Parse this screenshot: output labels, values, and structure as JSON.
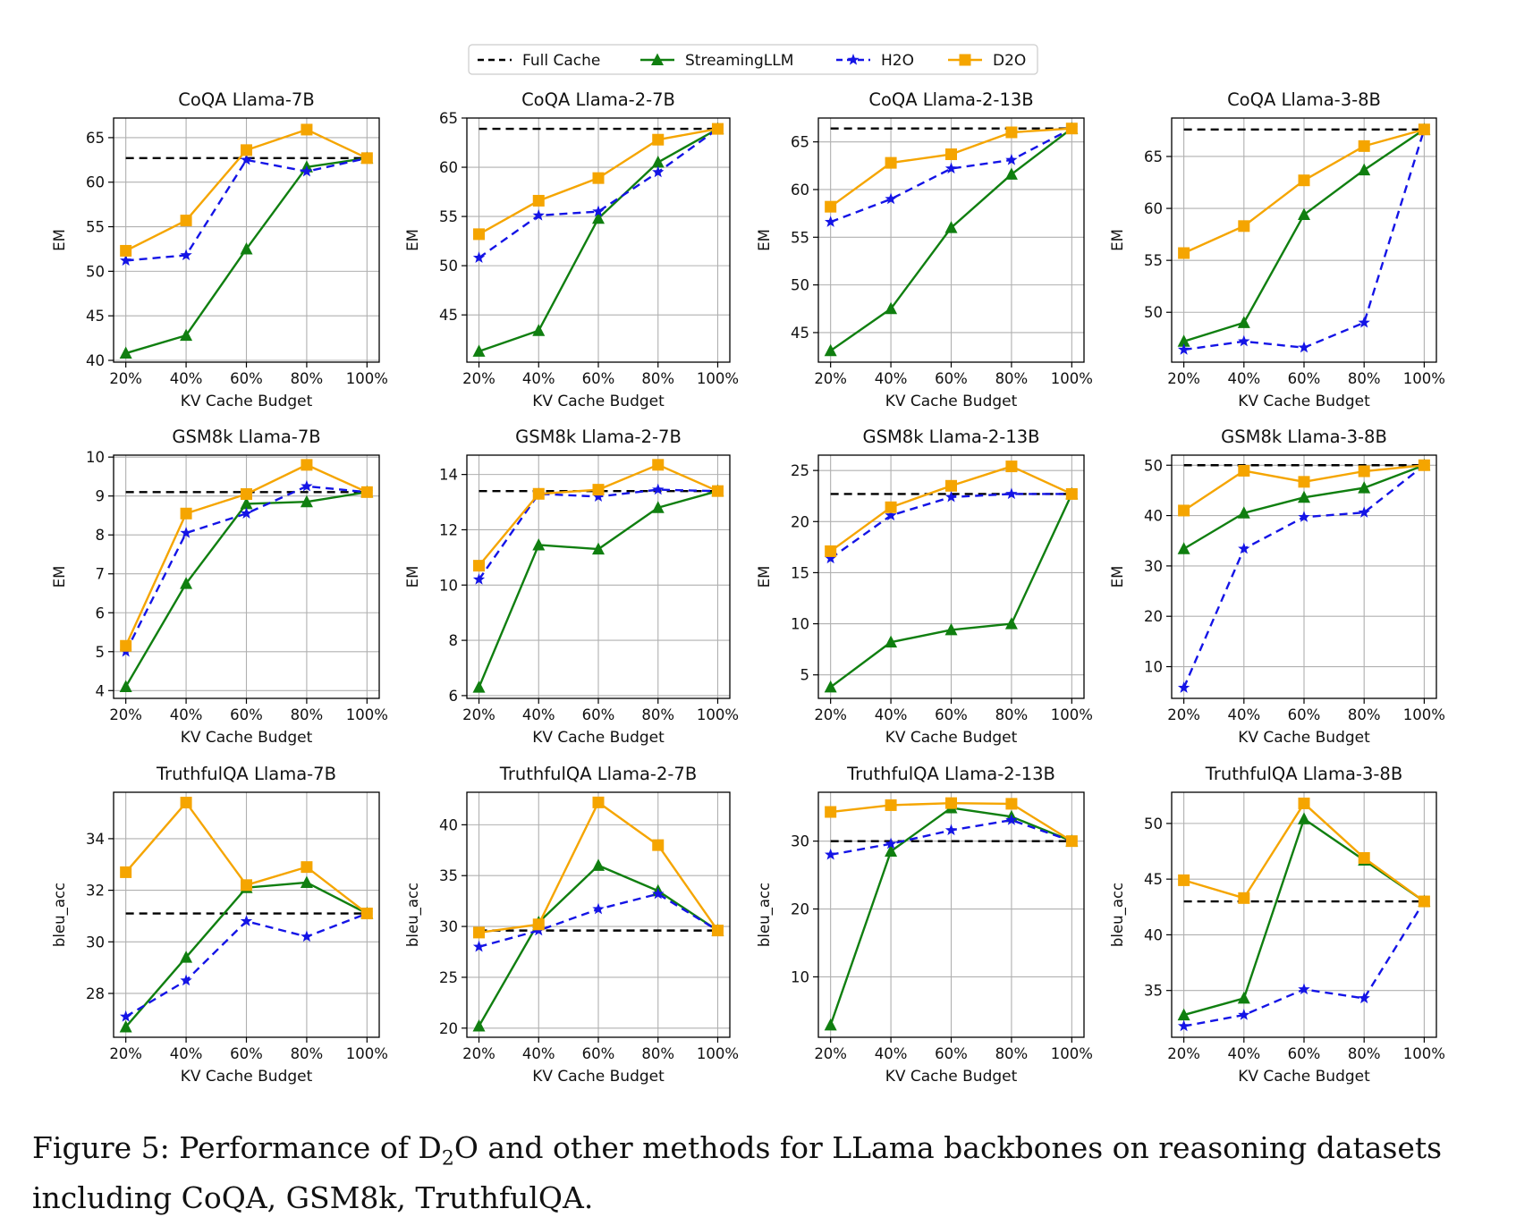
{
  "legend": {
    "items": [
      {
        "label": "Full Cache",
        "color": "#000000",
        "dash": true,
        "marker": "none"
      },
      {
        "label": "StreamingLLM",
        "color": "#107f10",
        "dash": false,
        "marker": "triangle"
      },
      {
        "label": "H2O",
        "color": "#1414e6",
        "dash": true,
        "marker": "star"
      },
      {
        "label": "D2O",
        "color": "#f5a500",
        "dash": false,
        "marker": "square"
      }
    ]
  },
  "caption": {
    "prefix": "Figure 5: Performance of D",
    "sub": "2",
    "suffix": "O and other methods for LLama backbones on reasoning datasets including CoQA, GSM8k, TruthfulQA."
  },
  "colors": {
    "full_cache": "#000000",
    "streaming": "#107f10",
    "h2o": "#1414e6",
    "d2o": "#f5a500",
    "grid": "#b0b0b0"
  },
  "chart_data": [
    {
      "type": "line",
      "title": "CoQA Llama-7B",
      "xlabel": "KV Cache Budget",
      "ylabel": "EM",
      "x": [
        "20%",
        "40%",
        "60%",
        "80%",
        "100%"
      ],
      "ylim": [
        39.8,
        67.2
      ],
      "yticks": [
        40,
        45,
        50,
        55,
        60,
        65
      ],
      "series": [
        {
          "name": "Full Cache",
          "values": [
            62.7,
            62.7,
            62.7,
            62.7,
            62.7
          ]
        },
        {
          "name": "StreamingLLM",
          "values": [
            40.8,
            42.8,
            52.5,
            61.7,
            62.7
          ]
        },
        {
          "name": "H2O",
          "values": [
            51.2,
            51.8,
            62.5,
            61.2,
            62.7
          ]
        },
        {
          "name": "D2O",
          "values": [
            52.3,
            55.7,
            63.6,
            65.9,
            62.7
          ]
        }
      ]
    },
    {
      "type": "line",
      "title": "CoQA Llama-2-7B",
      "xlabel": "KV Cache Budget",
      "ylabel": "EM",
      "x": [
        "20%",
        "40%",
        "60%",
        "80%",
        "100%"
      ],
      "ylim": [
        40.2,
        65.0
      ],
      "yticks": [
        45,
        50,
        55,
        60,
        65
      ],
      "series": [
        {
          "name": "Full Cache",
          "values": [
            63.9,
            63.9,
            63.9,
            63.9,
            63.9
          ]
        },
        {
          "name": "StreamingLLM",
          "values": [
            41.3,
            43.4,
            54.8,
            60.5,
            63.9
          ]
        },
        {
          "name": "H2O",
          "values": [
            50.8,
            55.1,
            55.5,
            59.5,
            63.9
          ]
        },
        {
          "name": "D2O",
          "values": [
            53.2,
            56.6,
            58.9,
            62.8,
            63.9
          ]
        }
      ]
    },
    {
      "type": "line",
      "title": "CoQA Llama-2-13B",
      "xlabel": "KV Cache Budget",
      "ylabel": "EM",
      "x": [
        "20%",
        "40%",
        "60%",
        "80%",
        "100%"
      ],
      "ylim": [
        41.9,
        67.5
      ],
      "yticks": [
        45,
        50,
        55,
        60,
        65
      ],
      "series": [
        {
          "name": "Full Cache",
          "values": [
            66.4,
            66.4,
            66.4,
            66.4,
            66.4
          ]
        },
        {
          "name": "StreamingLLM",
          "values": [
            43.1,
            47.5,
            56.0,
            61.6,
            66.4
          ]
        },
        {
          "name": "H2O",
          "values": [
            56.6,
            59.0,
            62.2,
            63.1,
            66.4
          ]
        },
        {
          "name": "D2O",
          "values": [
            58.2,
            62.8,
            63.7,
            66.0,
            66.4
          ]
        }
      ]
    },
    {
      "type": "line",
      "title": "CoQA Llama-3-8B",
      "xlabel": "KV Cache Budget",
      "ylabel": "EM",
      "x": [
        "20%",
        "40%",
        "60%",
        "80%",
        "100%"
      ],
      "ylim": [
        45.2,
        68.7
      ],
      "yticks": [
        50,
        55,
        60,
        65
      ],
      "series": [
        {
          "name": "Full Cache",
          "values": [
            67.6,
            67.6,
            67.6,
            67.6,
            67.6
          ]
        },
        {
          "name": "StreamingLLM",
          "values": [
            47.2,
            49.0,
            59.4,
            63.7,
            67.6
          ]
        },
        {
          "name": "H2O",
          "values": [
            46.4,
            47.2,
            46.6,
            49.0,
            67.6
          ]
        },
        {
          "name": "D2O",
          "values": [
            55.7,
            58.3,
            62.7,
            66.0,
            67.6
          ]
        }
      ]
    },
    {
      "type": "line",
      "title": "GSM8k Llama-7B",
      "xlabel": "KV Cache Budget",
      "ylabel": "EM",
      "x": [
        "20%",
        "40%",
        "60%",
        "80%",
        "100%"
      ],
      "ylim": [
        3.8,
        10.05
      ],
      "yticks": [
        4,
        5,
        6,
        7,
        8,
        9,
        10
      ],
      "series": [
        {
          "name": "Full Cache",
          "values": [
            9.1,
            9.1,
            9.1,
            9.1,
            9.1
          ]
        },
        {
          "name": "StreamingLLM",
          "values": [
            4.1,
            6.75,
            8.8,
            8.85,
            9.1
          ]
        },
        {
          "name": "H2O",
          "values": [
            5.0,
            8.05,
            8.55,
            9.25,
            9.1
          ]
        },
        {
          "name": "D2O",
          "values": [
            5.15,
            8.55,
            9.05,
            9.8,
            9.1
          ]
        }
      ]
    },
    {
      "type": "line",
      "title": "GSM8k Llama-2-7B",
      "xlabel": "KV Cache Budget",
      "ylabel": "EM",
      "x": [
        "20%",
        "40%",
        "60%",
        "80%",
        "100%"
      ],
      "ylim": [
        5.9,
        14.7
      ],
      "yticks": [
        6,
        8,
        10,
        12,
        14
      ],
      "series": [
        {
          "name": "Full Cache",
          "values": [
            13.4,
            13.4,
            13.4,
            13.4,
            13.4
          ]
        },
        {
          "name": "StreamingLLM",
          "values": [
            6.3,
            11.45,
            11.3,
            12.8,
            13.4
          ]
        },
        {
          "name": "H2O",
          "values": [
            10.2,
            13.3,
            13.2,
            13.45,
            13.4
          ]
        },
        {
          "name": "D2O",
          "values": [
            10.7,
            13.3,
            13.45,
            14.35,
            13.4
          ]
        }
      ]
    },
    {
      "type": "line",
      "title": "GSM8k Llama-2-13B",
      "xlabel": "KV Cache Budget",
      "ylabel": "EM",
      "x": [
        "20%",
        "40%",
        "60%",
        "80%",
        "100%"
      ],
      "ylim": [
        2.7,
        26.5
      ],
      "yticks": [
        5,
        10,
        15,
        20,
        25
      ],
      "series": [
        {
          "name": "Full Cache",
          "values": [
            22.7,
            22.7,
            22.7,
            22.7,
            22.7
          ]
        },
        {
          "name": "StreamingLLM",
          "values": [
            3.8,
            8.2,
            9.4,
            10.0,
            22.7
          ]
        },
        {
          "name": "H2O",
          "values": [
            16.4,
            20.6,
            22.4,
            22.7,
            22.7
          ]
        },
        {
          "name": "D2O",
          "values": [
            17.1,
            21.4,
            23.5,
            25.4,
            22.7
          ]
        }
      ]
    },
    {
      "type": "line",
      "title": "GSM8k Llama-3-8B",
      "xlabel": "KV Cache Budget",
      "ylabel": "EM",
      "x": [
        "20%",
        "40%",
        "60%",
        "80%",
        "100%"
      ],
      "ylim": [
        3.7,
        52.0
      ],
      "yticks": [
        10,
        20,
        30,
        40,
        50
      ],
      "series": [
        {
          "name": "Full Cache",
          "values": [
            50.0,
            50.0,
            50.0,
            50.0,
            50.0
          ]
        },
        {
          "name": "StreamingLLM",
          "values": [
            33.4,
            40.5,
            43.6,
            45.5,
            50.0
          ]
        },
        {
          "name": "H2O",
          "values": [
            5.8,
            33.4,
            39.7,
            40.6,
            50.0
          ]
        },
        {
          "name": "D2O",
          "values": [
            41.0,
            48.9,
            46.7,
            48.8,
            50.0
          ]
        }
      ]
    },
    {
      "type": "line",
      "title": "TruthfulQA Llama-7B",
      "xlabel": "KV Cache Budget",
      "ylabel": "bleu_acc",
      "x": [
        "20%",
        "40%",
        "60%",
        "80%",
        "100%"
      ],
      "ylim": [
        26.3,
        35.8
      ],
      "yticks": [
        28,
        30,
        32,
        34
      ],
      "series": [
        {
          "name": "Full Cache",
          "values": [
            31.1,
            31.1,
            31.1,
            31.1,
            31.1
          ]
        },
        {
          "name": "StreamingLLM",
          "values": [
            26.7,
            29.4,
            32.1,
            32.3,
            31.1
          ]
        },
        {
          "name": "H2O",
          "values": [
            27.1,
            28.5,
            30.8,
            30.2,
            31.1
          ]
        },
        {
          "name": "D2O",
          "values": [
            32.7,
            35.4,
            32.2,
            32.9,
            31.1
          ]
        }
      ]
    },
    {
      "type": "line",
      "title": "TruthfulQA Llama-2-7B",
      "xlabel": "KV Cache Budget",
      "ylabel": "bleu_acc",
      "x": [
        "20%",
        "40%",
        "60%",
        "80%",
        "100%"
      ],
      "ylim": [
        19.1,
        43.2
      ],
      "yticks": [
        20,
        25,
        30,
        35,
        40
      ],
      "series": [
        {
          "name": "Full Cache",
          "values": [
            29.6,
            29.6,
            29.6,
            29.6,
            29.6
          ]
        },
        {
          "name": "StreamingLLM",
          "values": [
            20.2,
            30.4,
            36.0,
            33.5,
            29.6
          ]
        },
        {
          "name": "H2O",
          "values": [
            28.0,
            29.6,
            31.7,
            33.2,
            29.6
          ]
        },
        {
          "name": "D2O",
          "values": [
            29.4,
            30.2,
            42.2,
            38.0,
            29.6
          ]
        }
      ]
    },
    {
      "type": "line",
      "title": "TruthfulQA Llama-2-13B",
      "xlabel": "KV Cache Budget",
      "ylabel": "bleu_acc",
      "x": [
        "20%",
        "40%",
        "60%",
        "80%",
        "100%"
      ],
      "ylim": [
        1.1,
        37.2
      ],
      "yticks": [
        10,
        20,
        30
      ],
      "series": [
        {
          "name": "Full Cache",
          "values": [
            30.0,
            30.0,
            30.0,
            30.0,
            30.0
          ]
        },
        {
          "name": "StreamingLLM",
          "values": [
            2.9,
            28.5,
            34.9,
            33.6,
            30.0
          ]
        },
        {
          "name": "H2O",
          "values": [
            28.0,
            29.6,
            31.6,
            33.1,
            30.0
          ]
        },
        {
          "name": "D2O",
          "values": [
            34.3,
            35.3,
            35.6,
            35.5,
            30.0
          ]
        }
      ]
    },
    {
      "type": "line",
      "title": "TruthfulQA Llama-3-8B",
      "xlabel": "KV Cache Budget",
      "ylabel": "bleu_acc",
      "x": [
        "20%",
        "40%",
        "60%",
        "80%",
        "100%"
      ],
      "ylim": [
        30.8,
        52.8
      ],
      "yticks": [
        35,
        40,
        45,
        50
      ],
      "series": [
        {
          "name": "Full Cache",
          "values": [
            43.0,
            43.0,
            43.0,
            43.0,
            43.0
          ]
        },
        {
          "name": "StreamingLLM",
          "values": [
            32.8,
            34.3,
            50.4,
            46.7,
            43.0
          ]
        },
        {
          "name": "H2O",
          "values": [
            31.8,
            32.8,
            35.1,
            34.3,
            43.0
          ]
        },
        {
          "name": "D2O",
          "values": [
            44.9,
            43.3,
            51.8,
            46.9,
            43.0
          ]
        }
      ]
    }
  ]
}
